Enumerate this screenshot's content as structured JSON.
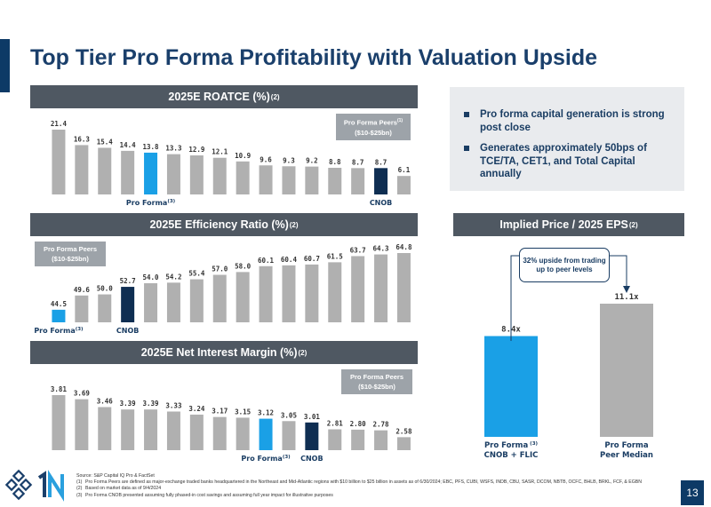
{
  "page": {
    "title": "Top Tier Pro Forma Profitability with Valuation Upside",
    "page_number": "13"
  },
  "colors": {
    "bar": "#b0b0b0",
    "highlight": "#1aa0e6",
    "cnob": "#0f2e52",
    "header": "#4f5862"
  },
  "bullets": [
    "Pro forma capital generation is strong post close",
    "Generates approximately 50bps of TCE/TA, CET1, and Total Capital annually"
  ],
  "peer_box": {
    "line1": "Pro Forma Peers",
    "line2": "($10-$25bn)",
    "sup": "(1)"
  },
  "callout": {
    "text": "32% upside from trading up to peer levels"
  },
  "chart_data": [
    {
      "type": "bar",
      "title": "2025E ROATCE (%)",
      "title_sup": "(2)",
      "values": [
        21.4,
        16.3,
        15.4,
        14.4,
        13.8,
        13.3,
        12.9,
        12.1,
        10.9,
        9.6,
        9.3,
        9.2,
        8.8,
        8.7,
        8.7,
        6.1
      ],
      "labels": [
        "21.4",
        "16.3",
        "15.4",
        "14.4",
        "13.8",
        "13.3",
        "12.9",
        "12.1",
        "10.9",
        "9.6",
        "9.3",
        "9.2",
        "8.8",
        "8.7",
        "8.7",
        "6.1"
      ],
      "highlight_index": 4,
      "cnob_index": 14,
      "pro_forma_label": "Pro Forma",
      "pro_forma_sup": "(3)",
      "cnob_label": "CNOB",
      "ylim": [
        0,
        21.4
      ]
    },
    {
      "type": "bar",
      "title": "2025E Efficiency Ratio (%)",
      "title_sup": "(2)",
      "values": [
        44.5,
        49.6,
        50.0,
        52.7,
        54.0,
        54.2,
        55.4,
        57.0,
        58.0,
        60.1,
        60.4,
        60.7,
        61.5,
        63.7,
        64.3,
        64.8
      ],
      "labels": [
        "44.5",
        "49.6",
        "50.0",
        "52.7",
        "54.0",
        "54.2",
        "55.4",
        "57.0",
        "58.0",
        "60.1",
        "60.4",
        "60.7",
        "61.5",
        "63.7",
        "64.3",
        "64.8"
      ],
      "highlight_index": 0,
      "cnob_index": 3,
      "pro_forma_label": "Pro Forma",
      "pro_forma_sup": "(3)",
      "cnob_label": "CNOB",
      "ylim": [
        40,
        64.8
      ]
    },
    {
      "type": "bar",
      "title": "2025E Net Interest Margin (%)",
      "title_sup": "(2)",
      "values": [
        3.81,
        3.69,
        3.46,
        3.39,
        3.39,
        3.33,
        3.24,
        3.17,
        3.15,
        3.12,
        3.05,
        3.01,
        2.81,
        2.8,
        2.78,
        2.58
      ],
      "labels": [
        "3.81",
        "3.69",
        "3.46",
        "3.39",
        "3.39",
        "3.33",
        "3.24",
        "3.17",
        "3.15",
        "3.12",
        "3.05",
        "3.01",
        "2.81",
        "2.80",
        "2.78",
        "2.58"
      ],
      "highlight_index": 9,
      "cnob_index": 11,
      "pro_forma_label": "Pro Forma",
      "pro_forma_sup": "(3)",
      "cnob_label": "CNOB",
      "ylim": [
        2.2,
        3.81
      ]
    },
    {
      "type": "bar",
      "title": "Implied Price / 2025 EPS",
      "title_sup": "(2)",
      "categories": [
        "Pro Forma CNOB + FLIC",
        "Pro Forma Peer Median"
      ],
      "cat_line1": [
        "Pro Forma",
        "Pro Forma"
      ],
      "cat_line2": [
        "CNOB + FLIC",
        "Peer Median"
      ],
      "cat_sup": "(3)",
      "values": [
        8.4,
        11.1
      ],
      "labels": [
        "8.4x",
        "11.1x"
      ],
      "ylim": [
        0,
        11.1
      ]
    }
  ],
  "footnotes": {
    "source": "Source: S&P Capital IQ Pro & FactSet",
    "items": [
      {
        "num": "(1)",
        "text": "Pro Forma Peers are defined as major-exchange traded banks headquartered in the Northeast and Mid-Atlantic regions with $10 billion to $25 billion in assets as of 6/30/2024; EBC, PFS, CUBI, WSFS, INDB, CBU, SASR, DCOM, NBTB, OCFC, BHLB, BRKL, FCF, & EGBN"
      },
      {
        "num": "(2)",
        "text": "Based on market data as of 9/4/2024"
      },
      {
        "num": "(3)",
        "text": "Pro Forma CNOB presented assuming fully phased-in cost savings and assuming full year impact for illustrative purposes"
      }
    ]
  }
}
